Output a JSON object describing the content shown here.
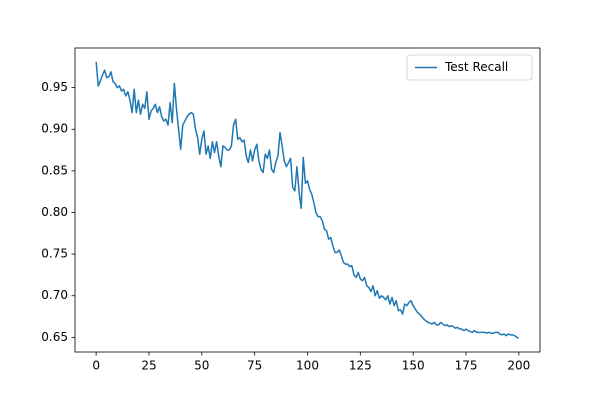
{
  "chart_data": {
    "type": "line",
    "x": [
      0,
      1,
      2,
      3,
      4,
      5,
      6,
      7,
      8,
      9,
      10,
      11,
      12,
      13,
      14,
      15,
      16,
      17,
      18,
      19,
      20,
      21,
      22,
      23,
      24,
      25,
      26,
      27,
      28,
      29,
      30,
      31,
      32,
      33,
      34,
      35,
      36,
      37,
      38,
      39,
      40,
      41,
      42,
      43,
      44,
      45,
      46,
      47,
      48,
      49,
      50,
      51,
      52,
      53,
      54,
      55,
      56,
      57,
      58,
      59,
      60,
      61,
      62,
      63,
      64,
      65,
      66,
      67,
      68,
      69,
      70,
      71,
      72,
      73,
      74,
      75,
      76,
      77,
      78,
      79,
      80,
      81,
      82,
      83,
      84,
      85,
      86,
      87,
      88,
      89,
      90,
      91,
      92,
      93,
      94,
      95,
      96,
      97,
      98,
      99,
      100,
      101,
      102,
      103,
      104,
      105,
      106,
      107,
      108,
      109,
      110,
      111,
      112,
      113,
      114,
      115,
      116,
      117,
      118,
      119,
      120,
      121,
      122,
      123,
      124,
      125,
      126,
      127,
      128,
      129,
      130,
      131,
      132,
      133,
      134,
      135,
      136,
      137,
      138,
      139,
      140,
      141,
      142,
      143,
      144,
      145,
      146,
      147,
      148,
      149,
      150,
      151,
      152,
      153,
      154,
      155,
      156,
      157,
      158,
      159,
      160,
      161,
      162,
      163,
      164,
      165,
      166,
      167,
      168,
      169,
      170,
      171,
      172,
      173,
      174,
      175,
      176,
      177,
      178,
      179,
      180,
      181,
      182,
      183,
      184,
      185,
      186,
      187,
      188,
      189,
      190,
      191,
      192,
      193,
      194,
      195,
      196,
      197,
      198,
      199,
      200
    ],
    "series": [
      {
        "name": "Test Recall",
        "color": "#1f77b4",
        "values": [
          0.981,
          0.952,
          0.958,
          0.965,
          0.971,
          0.962,
          0.963,
          0.969,
          0.957,
          0.955,
          0.95,
          0.952,
          0.946,
          0.948,
          0.94,
          0.945,
          0.935,
          0.92,
          0.948,
          0.92,
          0.935,
          0.918,
          0.93,
          0.925,
          0.945,
          0.912,
          0.922,
          0.925,
          0.93,
          0.92,
          0.927,
          0.915,
          0.91,
          0.912,
          0.905,
          0.932,
          0.908,
          0.955,
          0.925,
          0.9,
          0.876,
          0.905,
          0.91,
          0.915,
          0.918,
          0.92,
          0.918,
          0.9,
          0.89,
          0.87,
          0.888,
          0.898,
          0.87,
          0.88,
          0.865,
          0.885,
          0.872,
          0.885,
          0.868,
          0.855,
          0.88,
          0.878,
          0.875,
          0.875,
          0.88,
          0.905,
          0.912,
          0.888,
          0.89,
          0.885,
          0.887,
          0.868,
          0.86,
          0.875,
          0.862,
          0.875,
          0.882,
          0.862,
          0.852,
          0.848,
          0.87,
          0.865,
          0.875,
          0.852,
          0.848,
          0.86,
          0.868,
          0.896,
          0.88,
          0.862,
          0.855,
          0.86,
          0.865,
          0.83,
          0.826,
          0.855,
          0.825,
          0.805,
          0.866,
          0.835,
          0.838,
          0.828,
          0.822,
          0.812,
          0.8,
          0.795,
          0.795,
          0.79,
          0.78,
          0.778,
          0.768,
          0.77,
          0.76,
          0.752,
          0.752,
          0.755,
          0.748,
          0.74,
          0.738,
          0.738,
          0.735,
          0.736,
          0.725,
          0.722,
          0.728,
          0.72,
          0.718,
          0.722,
          0.712,
          0.71,
          0.705,
          0.712,
          0.7,
          0.706,
          0.697,
          0.7,
          0.698,
          0.695,
          0.7,
          0.69,
          0.698,
          0.688,
          0.694,
          0.682,
          0.683,
          0.678,
          0.69,
          0.688,
          0.692,
          0.694,
          0.688,
          0.684,
          0.68,
          0.678,
          0.675,
          0.672,
          0.67,
          0.668,
          0.667,
          0.666,
          0.668,
          0.665,
          0.665,
          0.668,
          0.666,
          0.664,
          0.665,
          0.663,
          0.664,
          0.663,
          0.661,
          0.662,
          0.66,
          0.66,
          0.658,
          0.66,
          0.658,
          0.657,
          0.656,
          0.658,
          0.656,
          0.656,
          0.656,
          0.656,
          0.656,
          0.655,
          0.656,
          0.655,
          0.655,
          0.656,
          0.656,
          0.654,
          0.653,
          0.654,
          0.652,
          0.654,
          0.653,
          0.653,
          0.652,
          0.65,
          0.649
        ]
      }
    ],
    "xlim": [
      -10,
      210
    ],
    "xticks": [
      0,
      25,
      50,
      75,
      100,
      125,
      150,
      175,
      200
    ],
    "ylim": [
      0.6324,
      0.9976
    ],
    "yticks": [
      0.65,
      {
        "value": 0.7,
        "label": "0.70"
      },
      0.75,
      {
        "value": 0.8,
        "label": "0.80"
      },
      0.85,
      {
        "value": 0.9,
        "label": "0.90"
      },
      0.95
    ],
    "legend": "upper right"
  }
}
